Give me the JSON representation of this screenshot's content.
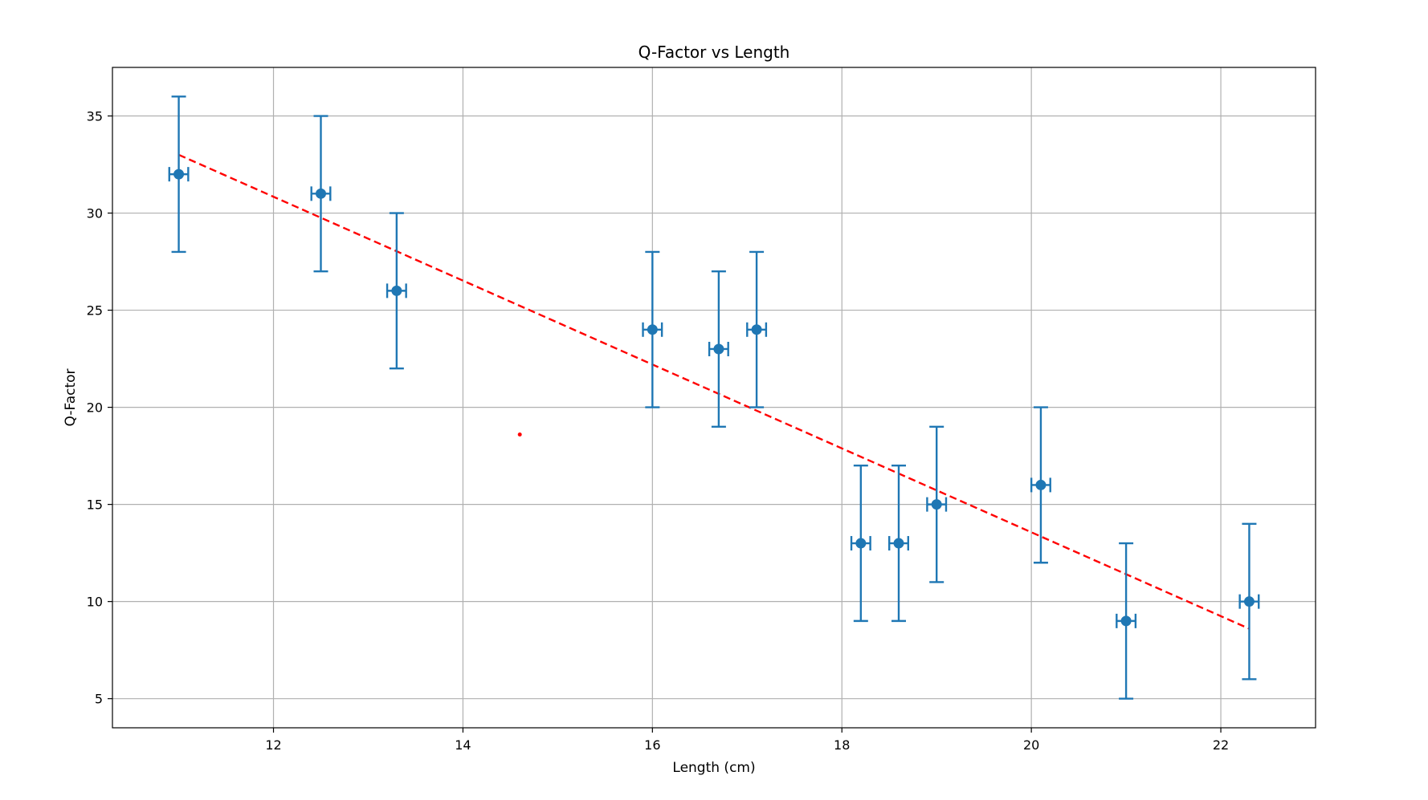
{
  "chart_data": {
    "type": "scatter",
    "title": "Q-Factor vs Length",
    "xlabel": "Length (cm)",
    "ylabel": "Q-Factor",
    "xlim": [
      10.3,
      23.0
    ],
    "ylim": [
      3.5,
      37.5
    ],
    "xticks": [
      12,
      14,
      16,
      18,
      20,
      22
    ],
    "yticks": [
      5,
      10,
      15,
      20,
      25,
      30,
      35
    ],
    "grid": true,
    "colors": {
      "data": "#1f77b4",
      "fit": "#ff0000",
      "grid": "#b0b0b0"
    },
    "series": [
      {
        "kind": "errorbar",
        "x": [
          11.0,
          12.5,
          13.3,
          16.0,
          16.7,
          17.1,
          18.2,
          18.6,
          19.0,
          20.1,
          21.0,
          22.3
        ],
        "y": [
          32,
          31,
          26,
          24,
          23,
          24,
          13,
          13,
          15,
          16,
          9,
          10
        ],
        "xerr": 0.1,
        "yerr": 4
      },
      {
        "kind": "fit-line",
        "style": "dashed",
        "x": [
          11.0,
          22.3
        ],
        "y": [
          33.0,
          8.6
        ]
      }
    ],
    "annotations": [
      {
        "kind": "dot",
        "x": 14.6,
        "y": 18.6
      }
    ]
  }
}
